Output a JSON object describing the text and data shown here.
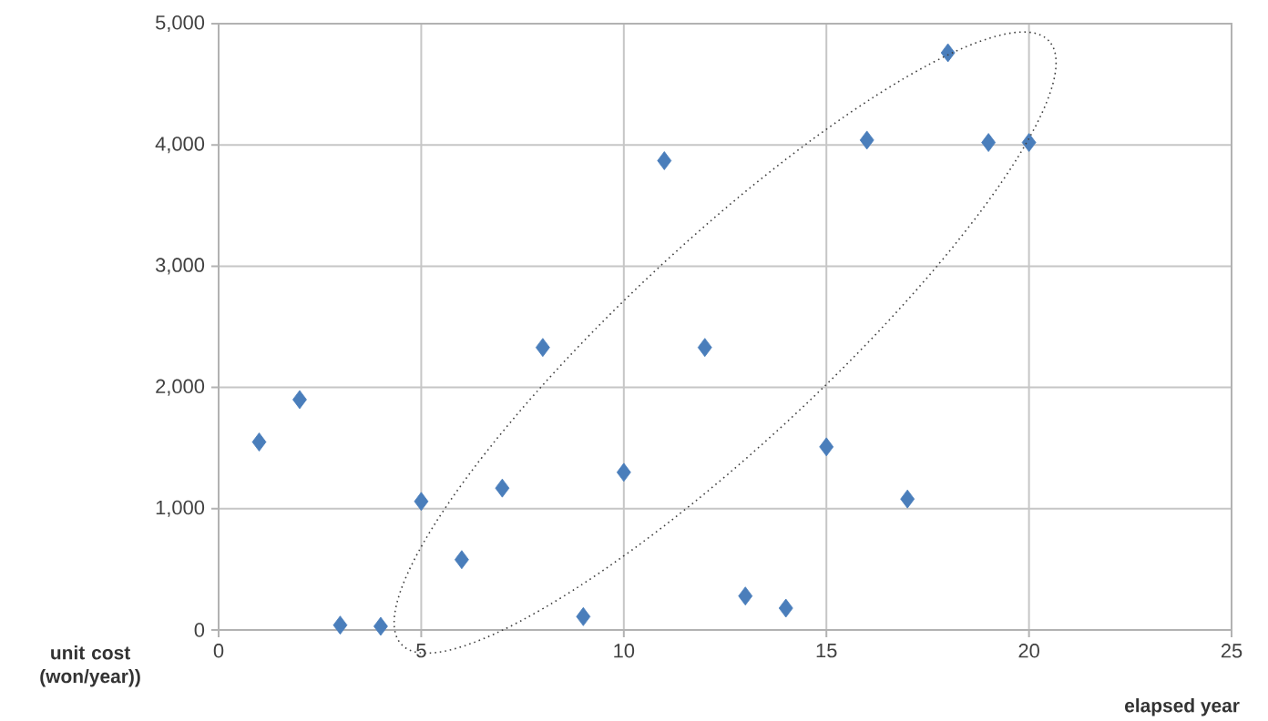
{
  "chart_data": {
    "type": "scatter",
    "xlabel": "elapsed year",
    "ylabel": "unit cost (won/year))",
    "x": [
      1,
      2,
      3,
      4,
      5,
      6,
      7,
      8,
      9,
      10,
      11,
      12,
      13,
      14,
      15,
      16,
      17,
      18,
      19,
      20
    ],
    "series": [
      {
        "color": "#4a7ebb",
        "values": [
          1550,
          1900,
          40,
          30,
          1060,
          580,
          1170,
          2330,
          110,
          1300,
          3870,
          2330,
          280,
          180,
          1510,
          4040,
          1080,
          4760,
          4020,
          4020
        ]
      }
    ],
    "xlim": [
      0,
      25
    ],
    "xticks": [
      0,
      5,
      10,
      15,
      20,
      25
    ],
    "ylim": [
      0,
      5000
    ],
    "yticks": [
      0,
      {
        "value": 1000,
        "label": "1,000"
      },
      {
        "value": 2000,
        "label": "2,000"
      },
      {
        "value": 3000,
        "label": "3,000"
      },
      {
        "value": 4000,
        "label": "4,000"
      },
      {
        "value": 5000,
        "label": "5,000"
      }
    ],
    "grid": true,
    "marker": "diamond"
  }
}
